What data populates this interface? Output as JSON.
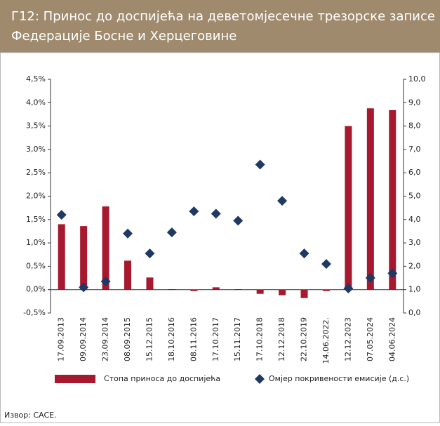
{
  "chart_data": {
    "type": "combo",
    "title": [
      "Г12:  Принос до доспијећа на  деветомјесечне трезорске записе",
      "Федерације Босне и Херцеговине"
    ],
    "categories": [
      "17.09.2013",
      "09.09.2014",
      "23.09.2014",
      "08.09.2015",
      "15.12.2015",
      "18.10.2016",
      "08.11.2016",
      "17.10.2017",
      "15.11.2017",
      "17.10.2018",
      "12.12.2018",
      "22.10.2019",
      "14.06.2022.",
      "12.12.2023",
      "07.05.2024",
      "04.06.2024"
    ],
    "series": [
      {
        "name": "Стопа приноса до доспијећа",
        "type": "bar",
        "color": "#a6192e",
        "values": [
          1.4,
          1.36,
          1.78,
          0.62,
          0.26,
          0.01,
          -0.03,
          0.05,
          0.01,
          -0.09,
          -0.12,
          -0.18,
          -0.03,
          3.5,
          3.88,
          3.84
        ]
      },
      {
        "name": "Омјер покривености емисије (д.с.)",
        "type": "scatter",
        "axis": "y2",
        "color": "#1f3864",
        "values": [
          4.2,
          1.1,
          1.35,
          3.4,
          2.55,
          3.45,
          4.35,
          4.25,
          3.95,
          6.35,
          4.8,
          2.55,
          2.1,
          1.05,
          1.5,
          1.7
        ]
      }
    ],
    "ylim": [
      -0.5,
      4.5
    ],
    "yticks": [
      {
        "value": -0.5,
        "label": "-0,5%"
      },
      {
        "value": 0,
        "label": "0,0%"
      },
      {
        "value": 0.5,
        "label": "0,5%"
      },
      {
        "value": 1,
        "label": "1,0%"
      },
      {
        "value": 1.5,
        "label": "1,5%"
      },
      {
        "value": 2,
        "label": "2,0%"
      },
      {
        "value": 2.5,
        "label": "2,5%"
      },
      {
        "value": 3,
        "label": "3,0%"
      },
      {
        "value": 3.5,
        "label": "3,5%"
      },
      {
        "value": 4,
        "label": "4,0%"
      },
      {
        "value": 4.5,
        "label": "4,5%"
      }
    ],
    "y2lim": [
      0,
      10
    ],
    "y2ticks": [
      {
        "value": 0,
        "label": "0,0"
      },
      {
        "value": 1,
        "label": "1,0"
      },
      {
        "value": 2,
        "label": "2,0"
      },
      {
        "value": 3,
        "label": "3,0"
      },
      {
        "value": 4,
        "label": "4,0"
      },
      {
        "value": 5,
        "label": "5,0"
      },
      {
        "value": 6,
        "label": "6,0"
      },
      {
        "value": 7,
        "label": "7,0"
      },
      {
        "value": 8,
        "label": "8,0"
      },
      {
        "value": 9,
        "label": "9,0"
      },
      {
        "value": 10,
        "label": "10,0"
      }
    ],
    "source": "Извор: CACE."
  }
}
